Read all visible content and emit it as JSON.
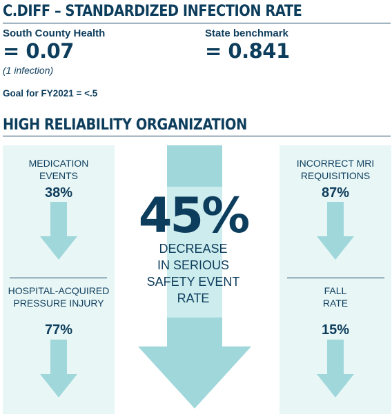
{
  "section1": {
    "title": "C.DIFF – STANDARDIZED INFECTION RATE",
    "south_county_label": "South County Health",
    "south_county_value": "= 0.07",
    "south_county_note": "(1 infection)",
    "state_label": "State benchmark",
    "state_value": "= 0.841",
    "goal": "Goal for FY2021 = <.5"
  },
  "section2": {
    "title": "HIGH RELIABILITY ORGANIZATION",
    "center": {
      "value": "45%",
      "line1": "DECREASE",
      "line2": "IN SERIOUS",
      "line3": "SAFETY EVENT",
      "line4": "RATE"
    },
    "left_top": {
      "line1": "MEDICATION",
      "line2": "EVENTS",
      "value": "38%"
    },
    "left_bottom": {
      "line1": "HOSPITAL-ACQUIRED",
      "line2": "PRESSURE INJURY",
      "value": "77%"
    },
    "right_top": {
      "line1": "INCORRECT MRI",
      "line2": "REQUISITIONS",
      "value": "87%"
    },
    "right_bottom": {
      "line1": "FALL",
      "line2": "RATE",
      "value": "15%"
    }
  },
  "colors": {
    "navy": "#0d3d5c",
    "panel": "#e8f6f6",
    "arrow": "#9fd7da",
    "arrow_light": "#cdeced"
  },
  "icons": [
    "down-arrow-icon"
  ]
}
